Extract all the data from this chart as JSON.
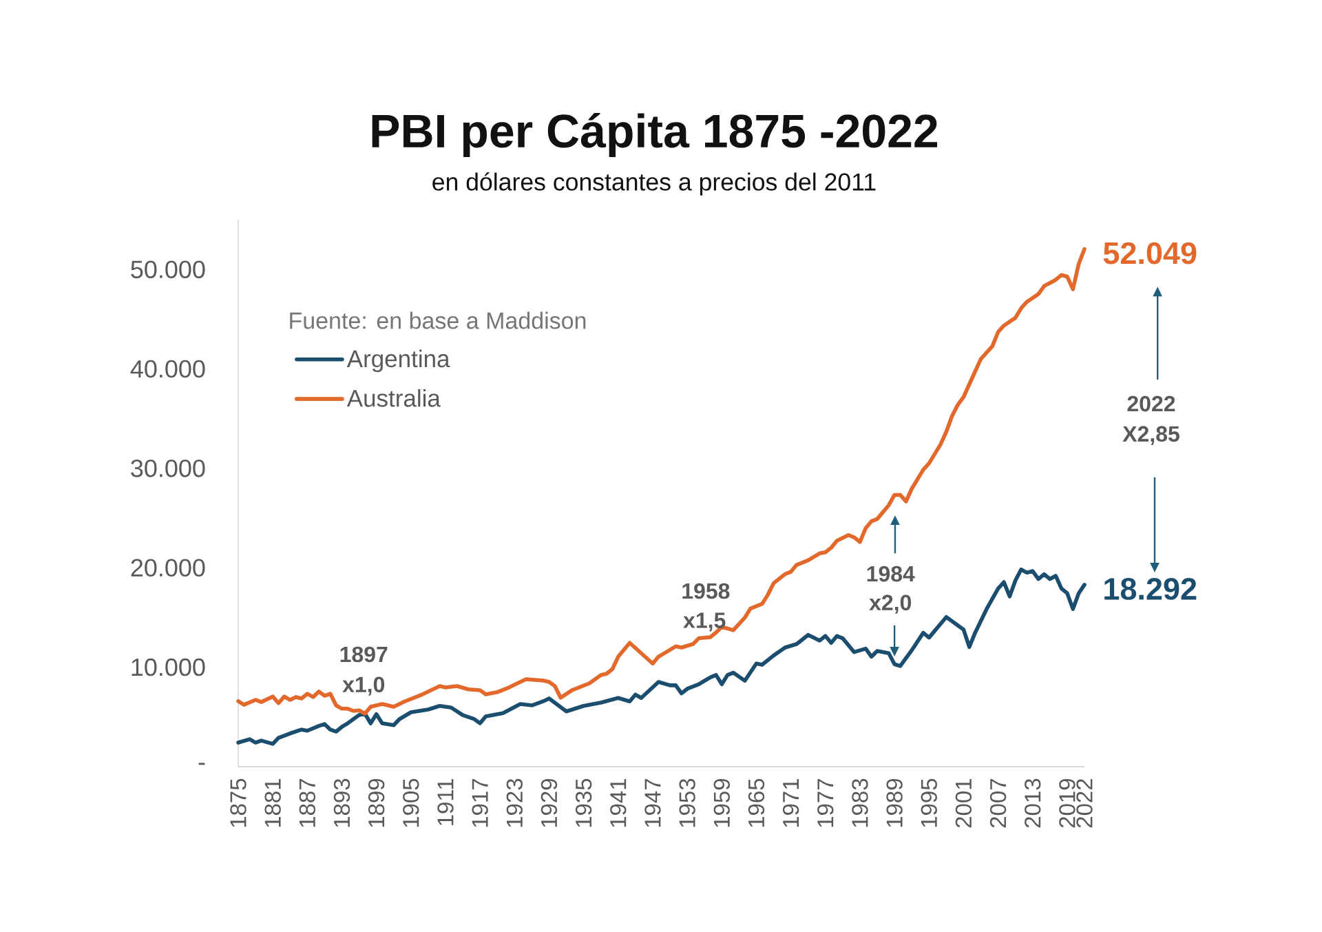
{
  "chart_data": {
    "type": "line",
    "title": "PBI per Cápita 1875 -2022",
    "subtitle": "en dólares constantes a precios del 2011",
    "xlim": [
      1875,
      2022
    ],
    "xticks": [
      1875,
      1881,
      1887,
      1893,
      1899,
      1905,
      1911,
      1917,
      1923,
      1929,
      1935,
      1941,
      1947,
      1953,
      1959,
      1965,
      1971,
      1977,
      1983,
      1989,
      1995,
      2001,
      2007,
      2013,
      2019,
      2022
    ],
    "ylim": [
      0,
      55000
    ],
    "yticks": [
      {
        "value": 0,
        "label": "-"
      },
      {
        "value": 10000,
        "label": "10.000"
      },
      {
        "value": 20000,
        "label": "20.000"
      },
      {
        "value": 30000,
        "label": "30.000"
      },
      {
        "value": 40000,
        "label": "40.000"
      },
      {
        "value": 50000,
        "label": "50.000"
      }
    ],
    "legend": "top left",
    "annotations": [
      "Fuente: en base a Maddison",
      "1897",
      "x1,0",
      "1958",
      "x1,5",
      "1984",
      {
        "text": "x2,0",
        "x": 1989,
        "y": 11080
      },
      "2022",
      "X2,85"
    ],
    "series": [
      {
        "name": "Argentina",
        "color": "#1b4e6e",
        "x": [
          1875,
          1877,
          1878,
          1879,
          1881,
          1882,
          1884,
          1886,
          1887,
          1889,
          1890,
          1891,
          1892,
          1893,
          1894,
          1896,
          1897,
          1898,
          1899,
          1900,
          1902,
          1903,
          1905,
          1908,
          1910,
          1912,
          1914,
          1916,
          1917,
          1918,
          1921,
          1924,
          1926,
          1928,
          1929,
          1932,
          1935,
          1938,
          1941,
          1943,
          1944,
          1945,
          1948,
          1950,
          1951,
          1952,
          1953,
          1955,
          1957,
          1958,
          1959,
          1960,
          1961,
          1963,
          1965,
          1966,
          1968,
          1970,
          1972,
          1974,
          1976,
          1977,
          1978,
          1979,
          1980,
          1982,
          1984,
          1985,
          1986,
          1988,
          1989,
          1990,
          1992,
          1994,
          1995,
          1998,
          2001,
          2002,
          2003,
          2005,
          2007,
          2008,
          2009,
          2010,
          2011,
          2012,
          2013,
          2014,
          2015,
          2016,
          2017,
          2018,
          2019,
          2020,
          2021,
          2022
        ],
        "values": [
          2420,
          2760,
          2420,
          2620,
          2290,
          2900,
          3340,
          3730,
          3620,
          4090,
          4280,
          3730,
          3530,
          4000,
          4360,
          5190,
          5330,
          4360,
          5280,
          4360,
          4170,
          4780,
          5470,
          5750,
          6110,
          5940,
          5190,
          4780,
          4360,
          5060,
          5390,
          6300,
          6160,
          6580,
          6860,
          5560,
          6110,
          6440,
          6910,
          6560,
          7250,
          6910,
          8520,
          8180,
          8180,
          7370,
          7830,
          8290,
          8980,
          9220,
          8290,
          9220,
          9450,
          8640,
          10370,
          10250,
          11180,
          11980,
          12330,
          13250,
          12680,
          13140,
          12450,
          13140,
          12910,
          11520,
          11870,
          11060,
          11640,
          11410,
          10300,
          10120,
          11710,
          13460,
          12980,
          15050,
          13780,
          12030,
          13460,
          15850,
          17920,
          18560,
          17120,
          18720,
          19830,
          19510,
          19670,
          18870,
          19350,
          18870,
          19190,
          17920,
          17440,
          15850,
          17440,
          18292
        ],
        "value_labels": [
          null,
          null,
          null,
          null,
          null,
          null,
          null,
          null,
          null,
          null,
          null,
          null,
          null,
          null,
          null,
          null,
          null,
          null,
          null,
          null,
          null,
          null,
          null,
          null,
          null,
          null,
          null,
          null,
          null,
          null,
          null,
          null,
          null,
          null,
          null,
          null,
          null,
          null,
          null,
          null,
          null,
          null,
          null,
          null,
          null,
          null,
          null,
          null,
          null,
          null,
          null,
          null,
          null,
          null,
          null,
          null,
          null,
          null,
          null,
          null,
          null,
          null,
          null,
          null,
          null,
          null,
          null,
          null,
          null,
          null,
          null,
          null,
          null,
          null,
          null,
          null,
          null,
          null,
          null,
          null,
          null,
          null,
          null,
          null,
          null,
          null,
          null,
          null,
          null,
          null,
          null,
          null,
          null,
          null,
          null,
          "18.292"
        ]
      },
      {
        "name": "Australia",
        "color": "#e2692b",
        "x": [
          1875,
          1876,
          1878,
          1879,
          1881,
          1882,
          1883,
          1884,
          1885,
          1886,
          1887,
          1888,
          1889,
          1890,
          1891,
          1892,
          1893,
          1894,
          1895,
          1896,
          1897,
          1898,
          1900,
          1902,
          1904,
          1907,
          1910,
          1911,
          1913,
          1915,
          1917,
          1918,
          1920,
          1922,
          1925,
          1928,
          1929,
          1930,
          1931,
          1933,
          1936,
          1938,
          1939,
          1940,
          1941,
          1943,
          1947,
          1948,
          1950,
          1951,
          1952,
          1954,
          1955,
          1957,
          1958,
          1959,
          1961,
          1963,
          1964,
          1966,
          1967,
          1968,
          1970,
          1971,
          1972,
          1974,
          1976,
          1977,
          1978,
          1979,
          1981,
          1982,
          1983,
          1984,
          1985,
          1986,
          1987,
          1988,
          1989,
          1990,
          1991,
          1992,
          1994,
          1995,
          1997,
          1998,
          1999,
          2000,
          2001,
          2002,
          2003,
          2004,
          2006,
          2007,
          2008,
          2010,
          2011,
          2012,
          2014,
          2015,
          2017,
          2018,
          2019,
          2020,
          2021,
          2022
        ],
        "values": [
          6580,
          6220,
          6720,
          6500,
          7050,
          6390,
          7050,
          6720,
          7000,
          6860,
          7330,
          7000,
          7550,
          7130,
          7330,
          6160,
          5830,
          5830,
          5610,
          5660,
          5330,
          6020,
          6300,
          6020,
          6580,
          7270,
          8100,
          7960,
          8100,
          7770,
          7690,
          7270,
          7490,
          7960,
          8800,
          8660,
          8520,
          8100,
          6940,
          7690,
          8380,
          9210,
          9350,
          9820,
          11060,
          12450,
          10370,
          11060,
          11750,
          12100,
          11980,
          12330,
          12910,
          13020,
          13490,
          14060,
          13720,
          14990,
          15910,
          16370,
          17290,
          18450,
          19370,
          19600,
          20290,
          20760,
          21450,
          21560,
          22020,
          22720,
          23290,
          23060,
          22600,
          23990,
          24680,
          24910,
          25600,
          26290,
          27330,
          27330,
          26670,
          27950,
          29860,
          30500,
          32410,
          33680,
          35270,
          36390,
          37180,
          38460,
          39730,
          41000,
          42280,
          43710,
          44350,
          45140,
          46100,
          46740,
          47530,
          48330,
          48960,
          49440,
          49280,
          48010,
          50550,
          52049
        ],
        "value_labels": [
          null,
          null,
          null,
          null,
          null,
          null,
          null,
          null,
          null,
          null,
          null,
          null,
          null,
          null,
          null,
          null,
          null,
          null,
          null,
          null,
          null,
          null,
          null,
          null,
          null,
          null,
          null,
          null,
          null,
          null,
          null,
          null,
          null,
          null,
          null,
          null,
          null,
          null,
          null,
          null,
          null,
          null,
          null,
          null,
          null,
          null,
          null,
          null,
          null,
          null,
          null,
          null,
          null,
          null,
          null,
          null,
          null,
          null,
          null,
          null,
          null,
          null,
          null,
          null,
          null,
          null,
          null,
          null,
          null,
          null,
          null,
          null,
          null,
          null,
          null,
          null,
          null,
          null,
          null,
          null,
          null,
          null,
          null,
          null,
          null,
          null,
          null,
          null,
          null,
          null,
          null,
          null,
          null,
          null,
          null,
          null,
          null,
          null,
          null,
          null,
          null,
          null,
          null,
          null,
          null,
          "52.049"
        ]
      }
    ]
  }
}
